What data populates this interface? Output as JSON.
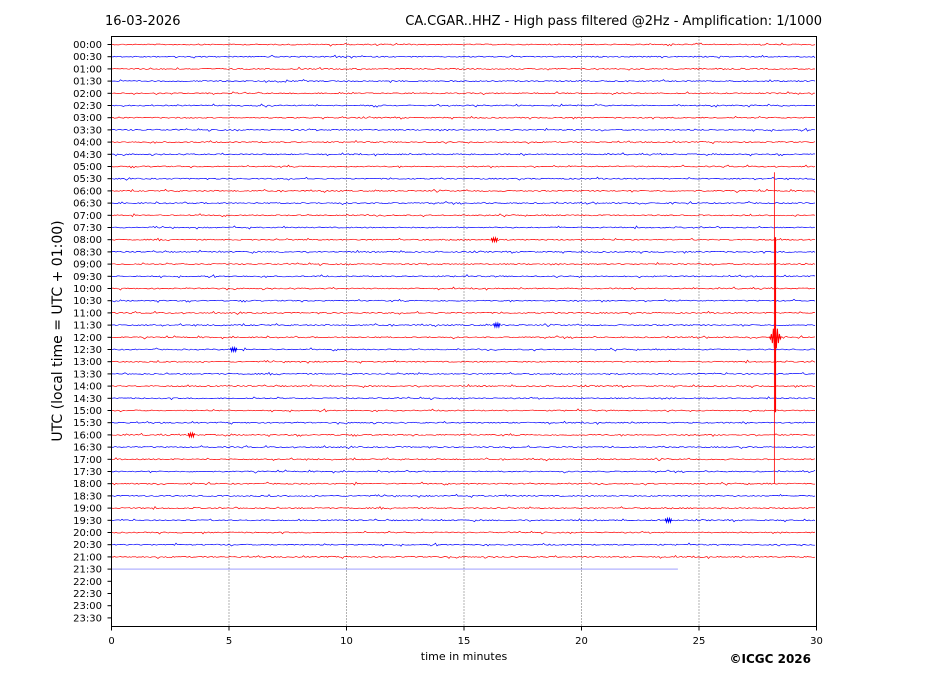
{
  "header": {
    "date": "16-03-2026",
    "title": "CA.CGAR..HHZ - High pass filtered @2Hz - Amplification: 1/1000"
  },
  "footer": {
    "copyright": "©ICGC 2026"
  },
  "colors": {
    "trace_a": "#ff0000",
    "trace_b": "#0000ff",
    "grid": "#000000",
    "axis": "#000000"
  },
  "chart_data": {
    "type": "line",
    "title": "CA.CGAR..HHZ - High pass filtered @2Hz - Amplification: 1/1000",
    "xlabel": "time in minutes",
    "ylabel": "UTC (local time = UTC + 01:00)",
    "xlim": [
      0,
      30
    ],
    "x_ticks": [
      0,
      5,
      10,
      15,
      20,
      25,
      30
    ],
    "x_tick_labels": [
      "0",
      "5",
      "10",
      "15",
      "20",
      "25",
      "30"
    ],
    "grid": "vertical dotted lines at x ticks",
    "y_tick_labels": [
      "00:00",
      "00:30",
      "01:00",
      "01:30",
      "02:00",
      "02:30",
      "03:00",
      "03:30",
      "04:00",
      "04:30",
      "05:00",
      "05:30",
      "06:00",
      "06:30",
      "07:00",
      "07:30",
      "08:00",
      "08:30",
      "09:00",
      "09:30",
      "10:00",
      "10:30",
      "11:00",
      "11:30",
      "12:00",
      "12:30",
      "13:00",
      "13:30",
      "14:00",
      "14:30",
      "15:00",
      "15:30",
      "16:00",
      "16:30",
      "17:00",
      "17:30",
      "18:00",
      "18:30",
      "19:00",
      "19:30",
      "20:00",
      "20:30",
      "21:00",
      "21:30",
      "22:00",
      "22:30",
      "23:00",
      "23:30"
    ],
    "trace_colors": [
      "red",
      "blue"
    ],
    "recorded_rows": 44,
    "last_row_end_minute": 24.1,
    "events": [
      {
        "row": "12:00",
        "minute": 28.25,
        "color": "red",
        "description": "large spike"
      },
      {
        "row": "11:30",
        "minute": 16.4,
        "color": "blue"
      },
      {
        "row": "12:30",
        "minute": 5.2,
        "color": "blue"
      },
      {
        "row": "08:00",
        "minute": 16.3,
        "color": "red"
      },
      {
        "row": "16:00",
        "minute": 3.4,
        "color": "red"
      },
      {
        "row": "19:30",
        "minute": 23.7,
        "color": "blue"
      }
    ]
  }
}
